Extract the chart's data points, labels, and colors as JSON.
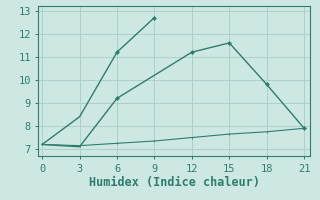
{
  "line1_x": [
    0,
    3,
    6,
    9
  ],
  "line1_y": [
    7.2,
    8.4,
    11.2,
    12.7
  ],
  "line1_markers": [
    6,
    9
  ],
  "line2_x": [
    0,
    3,
    6,
    12,
    15,
    18,
    21
  ],
  "line2_y": [
    7.2,
    7.1,
    9.2,
    11.2,
    11.6,
    9.8,
    7.9
  ],
  "line2_markers_x": [
    6,
    12,
    15,
    18,
    21
  ],
  "line2_markers_y": [
    9.2,
    11.2,
    11.6,
    9.8,
    7.9
  ],
  "line3_x": [
    0,
    3,
    6,
    9,
    12,
    15,
    18,
    21
  ],
  "line3_y": [
    7.2,
    7.15,
    7.25,
    7.35,
    7.5,
    7.65,
    7.75,
    7.9
  ],
  "line_color": "#2e7d6e",
  "bg_color": "#cde8e3",
  "grid_color": "#aed0ca",
  "xlabel": "Humidex (Indice chaleur)",
  "xlim": [
    -0.3,
    21.5
  ],
  "ylim": [
    6.7,
    13.2
  ],
  "xticks": [
    0,
    3,
    6,
    9,
    12,
    15,
    18,
    21
  ],
  "yticks": [
    7,
    8,
    9,
    10,
    11,
    12,
    13
  ],
  "tick_fontsize": 7.5,
  "xlabel_fontsize": 8.5
}
